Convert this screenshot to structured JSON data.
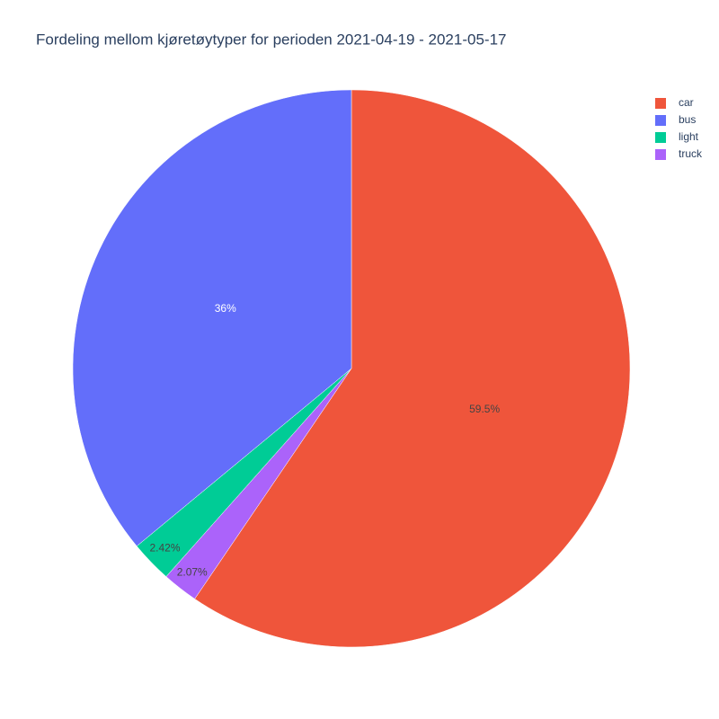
{
  "chart_data": {
    "type": "pie",
    "title": "Fordeling mellom kjøretøytyper for perioden 2021-04-19 - 2021-05-17",
    "categories": [
      "car",
      "bus",
      "light",
      "truck"
    ],
    "values": [
      59.5,
      36,
      2.42,
      2.07
    ],
    "value_labels": [
      "59.5%",
      "36%",
      "2.42%",
      "2.07%"
    ],
    "colors": [
      "#ef553b",
      "#636efa",
      "#00cc96",
      "#ab63fa"
    ],
    "legend": "top-right"
  }
}
